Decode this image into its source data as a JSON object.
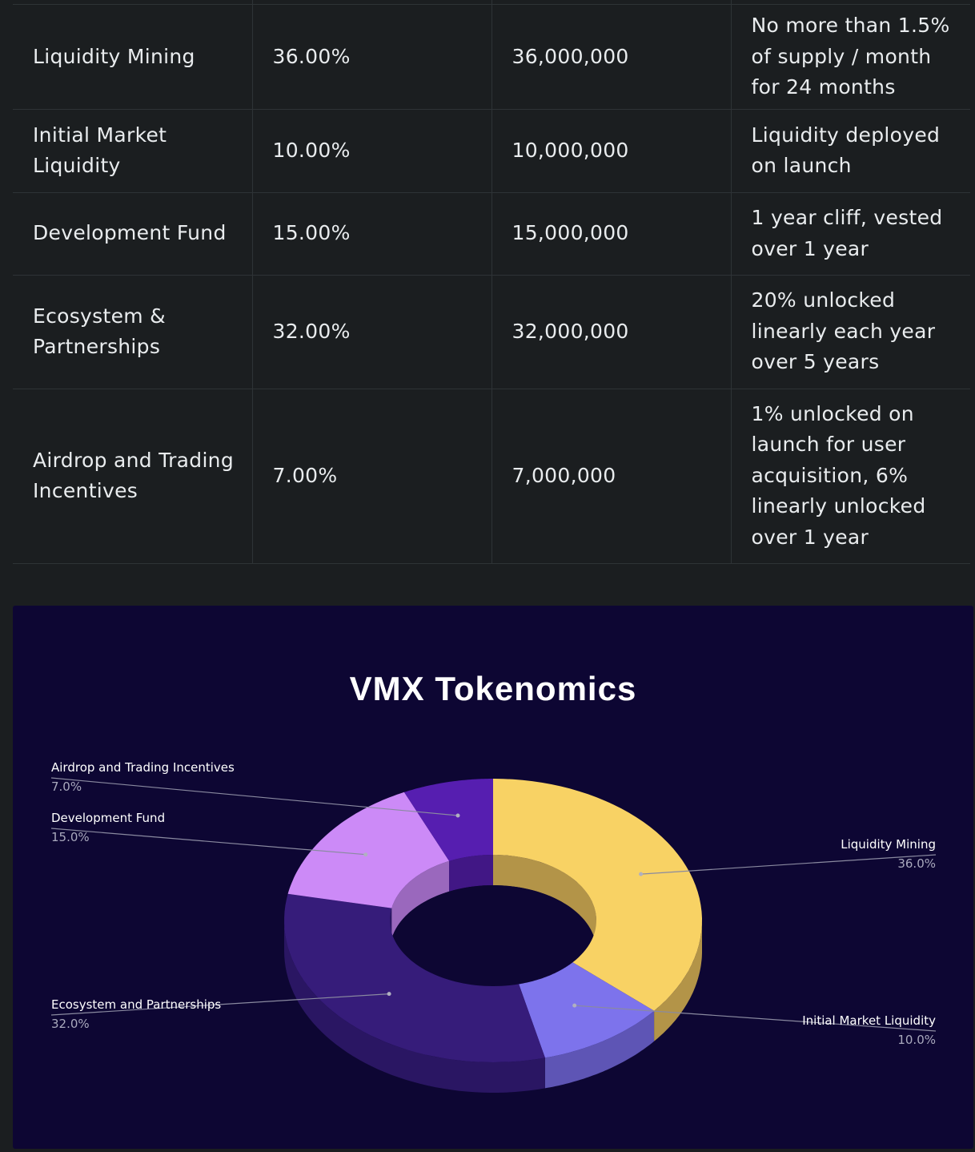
{
  "table": {
    "rows": [
      {
        "name": "Liquidity Mining",
        "lines_name": [
          "Liquidity Mining"
        ],
        "percent": "36.00%",
        "tokens": "36,000,000",
        "lines_vesting": [
          "No more than 1.5%",
          "of supply / month",
          "for 24 months"
        ]
      },
      {
        "name": "Initial Market Liquidity",
        "lines_name": [
          "Initial Market",
          "Liquidity"
        ],
        "percent": "10.00%",
        "tokens": "10,000,000",
        "lines_vesting": [
          "Liquidity deployed",
          "on launch"
        ]
      },
      {
        "name": "Development Fund",
        "lines_name": [
          "Development Fund"
        ],
        "percent": "15.00%",
        "tokens": "15,000,000",
        "lines_vesting": [
          "1 year cliff, vested",
          "over 1 year"
        ]
      },
      {
        "name": "Ecosystem & Partnerships",
        "lines_name": [
          "Ecosystem &",
          "Partnerships"
        ],
        "percent": "32.00%",
        "tokens": "32,000,000",
        "lines_vesting": [
          "20% unlocked",
          "linearly each year",
          "over 5 years"
        ]
      },
      {
        "name": "Airdrop and Trading Incentives",
        "lines_name": [
          "Airdrop and Trading",
          "Incentives"
        ],
        "percent": "7.00%",
        "tokens": "7,000,000",
        "lines_vesting": [
          "1% unlocked on",
          "launch for user",
          "acquisition, 6%",
          "linearly unlocked",
          "over 1 year"
        ]
      }
    ]
  },
  "chart_data": {
    "type": "pie",
    "style": "3d-donut",
    "title": "VMX Tokenomics",
    "categories": [
      "Liquidity Mining",
      "Initial Market Liquidity",
      "Ecosystem and Partnerships",
      "Development Fund",
      "Airdrop and Trading Incentives"
    ],
    "values": [
      36.0,
      10.0,
      32.0,
      15.0,
      7.0
    ],
    "labels": [
      "36.0%",
      "10.0%",
      "32.0%",
      "15.0%",
      "7.0%"
    ],
    "colors": [
      "#f8d264",
      "#7d73ec",
      "#361c7a",
      "#cc8af7",
      "#561eb0"
    ],
    "side_colors": [
      "#b39448",
      "#5e55b5",
      "#2a1663",
      "#9a68bd",
      "#411785"
    ],
    "background": "#0d0633",
    "label_placement": [
      "right",
      "right",
      "left",
      "left",
      "left"
    ]
  }
}
